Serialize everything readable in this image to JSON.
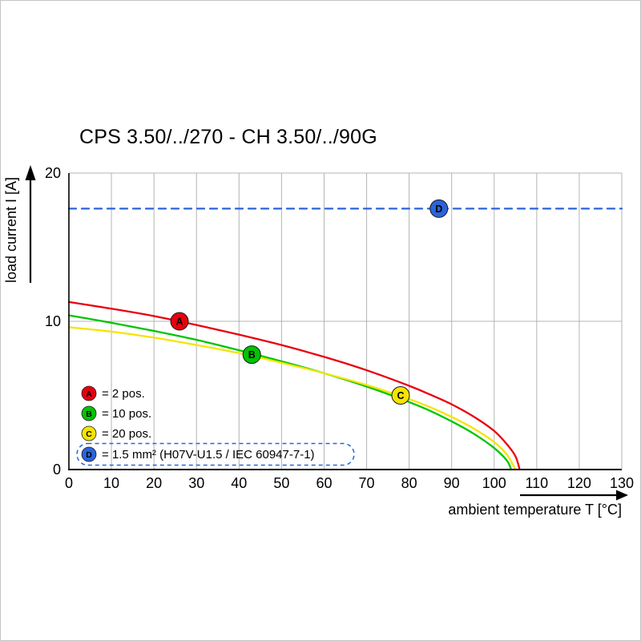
{
  "page": {
    "background": "#ffffff",
    "border_color": "#c4c4c4"
  },
  "chart_data": {
    "type": "line",
    "title": "CPS 3.50/../270 - CH 3.50/../90G",
    "xlabel": "ambient temperature T [°C]",
    "ylabel": "load current I [A]",
    "xlim": [
      0,
      130
    ],
    "ylim": [
      0,
      20
    ],
    "x_ticks": [
      0,
      10,
      20,
      30,
      40,
      50,
      60,
      70,
      80,
      90,
      100,
      110,
      120,
      130
    ],
    "y_ticks": [
      0,
      10,
      20
    ],
    "grid": {
      "color": "#b4b4b4",
      "horizontal_lines": [
        10,
        20
      ]
    },
    "series": [
      {
        "id": "A",
        "name": "2 pos.",
        "color": "#e8000d",
        "style": "solid",
        "points": [
          [
            0,
            11.3
          ],
          [
            10,
            10.85
          ],
          [
            20,
            10.35
          ],
          [
            30,
            9.75
          ],
          [
            40,
            9.1
          ],
          [
            50,
            8.4
          ],
          [
            60,
            7.6
          ],
          [
            70,
            6.7
          ],
          [
            80,
            5.65
          ],
          [
            85,
            5.05
          ],
          [
            90,
            4.4
          ],
          [
            95,
            3.6
          ],
          [
            100,
            2.6
          ],
          [
            103,
            1.7
          ],
          [
            105,
            0.9
          ],
          [
            106,
            0
          ]
        ]
      },
      {
        "id": "B",
        "name": "10 pos.",
        "color": "#00c400",
        "style": "solid",
        "points": [
          [
            0,
            10.4
          ],
          [
            10,
            9.9
          ],
          [
            20,
            9.35
          ],
          [
            30,
            8.75
          ],
          [
            40,
            8.05
          ],
          [
            50,
            7.3
          ],
          [
            60,
            6.5
          ],
          [
            70,
            5.6
          ],
          [
            80,
            4.55
          ],
          [
            85,
            3.95
          ],
          [
            90,
            3.25
          ],
          [
            95,
            2.45
          ],
          [
            100,
            1.45
          ],
          [
            103,
            0.6
          ],
          [
            104,
            0
          ]
        ]
      },
      {
        "id": "C",
        "name": "20 pos.",
        "color": "#f5e400",
        "style": "solid",
        "points": [
          [
            0,
            9.6
          ],
          [
            10,
            9.3
          ],
          [
            20,
            8.9
          ],
          [
            30,
            8.4
          ],
          [
            40,
            7.85
          ],
          [
            50,
            7.2
          ],
          [
            60,
            6.5
          ],
          [
            70,
            5.7
          ],
          [
            80,
            4.75
          ],
          [
            85,
            4.2
          ],
          [
            90,
            3.55
          ],
          [
            95,
            2.8
          ],
          [
            100,
            1.85
          ],
          [
            103,
            1.0
          ],
          [
            105,
            0
          ]
        ]
      },
      {
        "id": "D",
        "name": "1.5 mm² (H07V-U1.5 / IEC 60947-7-1)",
        "color": "#2a64d9",
        "style": "dashed",
        "points": [
          [
            0,
            17.6
          ],
          [
            130,
            17.6
          ]
        ]
      }
    ],
    "markers": [
      {
        "label": "A",
        "x": 26,
        "y": 10.0,
        "color": "#e8000d",
        "text_color": "#ffffff"
      },
      {
        "label": "B",
        "x": 43,
        "y": 7.75,
        "color": "#00c400",
        "text_color": "#ffffff"
      },
      {
        "label": "C",
        "x": 78,
        "y": 5.0,
        "color": "#f5e400",
        "text_color": "#1a1a1a"
      },
      {
        "label": "D",
        "x": 87,
        "y": 17.6,
        "color": "#2a64d9",
        "text_color": "#ffffff"
      }
    ],
    "legend": {
      "position": "lower-left",
      "items": [
        {
          "key": "A",
          "color": "#e8000d",
          "label": "= 2 pos.",
          "text_color": "#ffffff",
          "boxed": false
        },
        {
          "key": "B",
          "color": "#00c400",
          "label": "= 10 pos.",
          "text_color": "#ffffff",
          "boxed": false
        },
        {
          "key": "C",
          "color": "#f5e400",
          "label": "= 20 pos.",
          "text_color": "#1a1a1a",
          "boxed": false
        },
        {
          "key": "D",
          "color": "#2a64d9",
          "label": "= 1.5 mm² (H07V-U1.5 / IEC 60947-7-1)",
          "text_color": "#ffffff",
          "boxed": true,
          "box_style": "dashed"
        }
      ]
    }
  }
}
